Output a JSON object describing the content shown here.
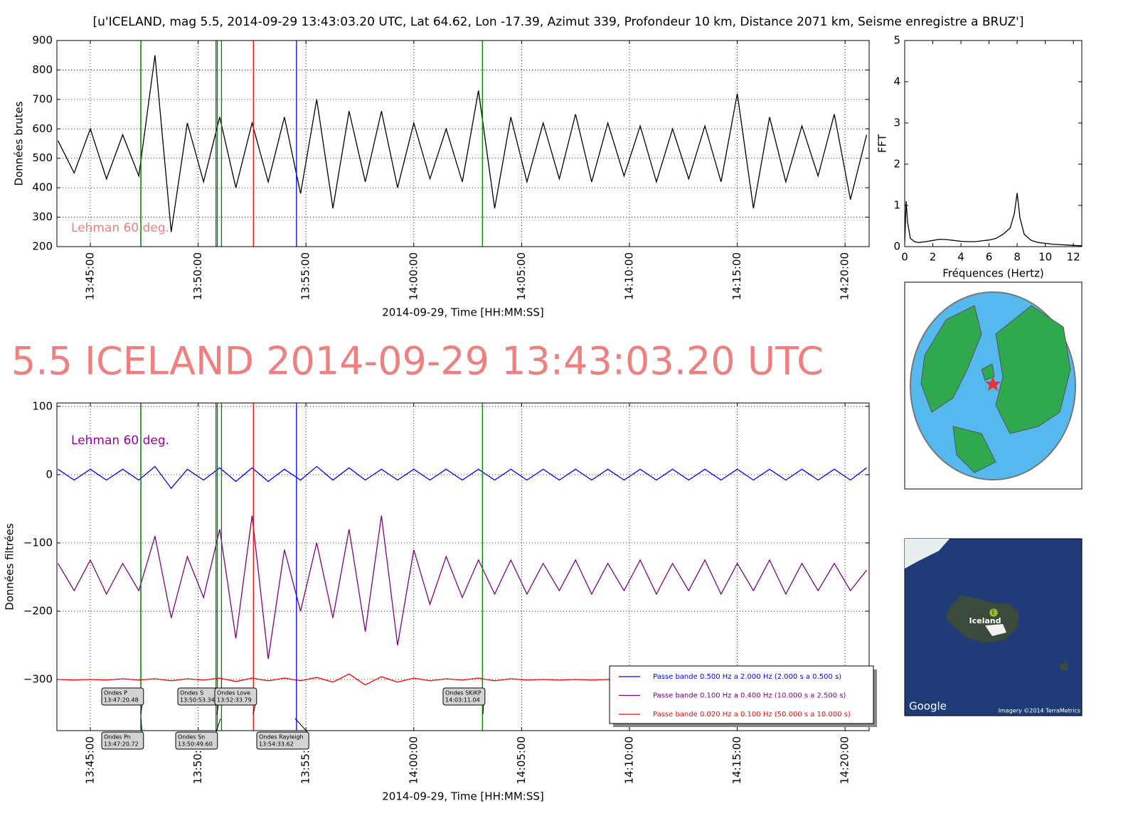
{
  "chart_data": [
    {
      "type": "line",
      "title": "[u'ICELAND, mag 5.5, 2014-09-29 13:43:03.20 UTC, Lat 64.62, Lon -17.39, Azimut 339, Profondeur 10 km, Distance  2071 km, Seisme enregistre a BRUZ']",
      "ylabel": "Données brutes",
      "xlabel": "2014-09-29, Time [HH:MM:SS]",
      "annotation": "Lehman 60 deg.",
      "annotation_color": "#f08080",
      "color": "#000000",
      "grid": true,
      "xlim": [
        "13:43:27",
        "14:21:07"
      ],
      "xticks": [
        "13:45:00",
        "13:50:00",
        "13:55:00",
        "14:00:00",
        "14:05:00",
        "14:10:00",
        "14:15:00",
        "14:20:00"
      ],
      "ylim": [
        200,
        900
      ],
      "yticks": [
        200,
        300,
        400,
        500,
        600,
        700,
        800,
        900
      ],
      "x": [
        "13:43:30",
        "13:44:15",
        "13:45:00",
        "13:45:45",
        "13:46:30",
        "13:47:15",
        "13:48:00",
        "13:48:45",
        "13:49:30",
        "13:50:15",
        "13:51:00",
        "13:51:45",
        "13:52:30",
        "13:53:15",
        "13:54:00",
        "13:54:45",
        "13:55:30",
        "13:56:15",
        "13:57:00",
        "13:57:45",
        "13:58:30",
        "13:59:15",
        "14:00:00",
        "14:00:45",
        "14:01:30",
        "14:02:15",
        "14:03:00",
        "14:03:45",
        "14:04:30",
        "14:05:15",
        "14:06:00",
        "14:06:45",
        "14:07:30",
        "14:08:15",
        "14:09:00",
        "14:09:45",
        "14:10:30",
        "14:11:15",
        "14:12:00",
        "14:12:45",
        "14:13:30",
        "14:14:15",
        "14:15:00",
        "14:15:45",
        "14:16:30",
        "14:17:15",
        "14:18:00",
        "14:18:45",
        "14:19:30",
        "14:20:15",
        "14:21:00"
      ],
      "values": [
        560,
        450,
        600,
        430,
        580,
        440,
        850,
        250,
        620,
        420,
        640,
        400,
        620,
        420,
        640,
        380,
        700,
        330,
        660,
        420,
        660,
        400,
        620,
        430,
        600,
        420,
        730,
        330,
        640,
        420,
        620,
        430,
        650,
        420,
        620,
        440,
        610,
        420,
        600,
        430,
        610,
        420,
        720,
        330,
        640,
        420,
        610,
        440,
        650,
        360,
        580
      ]
    },
    {
      "type": "line",
      "ylabel": "FFT",
      "xlabel": "Fréquences (Hertz)",
      "color": "#000000",
      "grid": false,
      "xlim": [
        0,
        12.6
      ],
      "xticks": [
        0,
        2,
        4,
        6,
        8,
        10,
        12
      ],
      "ylim": [
        0,
        5
      ],
      "yticks": [
        0,
        1,
        2,
        3,
        4,
        5
      ],
      "x": [
        0,
        0.1,
        0.2,
        0.4,
        0.7,
        1,
        1.5,
        2,
        2.5,
        3,
        3.5,
        4,
        4.5,
        5,
        5.5,
        6,
        6.5,
        7,
        7.5,
        7.8,
        8,
        8.2,
        8.5,
        9,
        9.5,
        10,
        10.5,
        11,
        11.5,
        12,
        12.6
      ],
      "values": [
        0.1,
        1.1,
        0.6,
        0.2,
        0.12,
        0.1,
        0.12,
        0.15,
        0.18,
        0.17,
        0.15,
        0.13,
        0.12,
        0.12,
        0.14,
        0.16,
        0.2,
        0.3,
        0.45,
        0.8,
        1.3,
        0.7,
        0.3,
        0.15,
        0.1,
        0.08,
        0.06,
        0.05,
        0.04,
        0.03,
        0.02
      ]
    },
    {
      "type": "line",
      "title": "5.5 ICELAND 2014-09-29 13:43:03.20 UTC",
      "ylabel": "Données filtrées",
      "xlabel": "2014-09-29, Time [HH:MM:SS]",
      "annotation": "Lehman 60 deg.",
      "annotation_color": "#990099",
      "grid": true,
      "legend": "lower right",
      "xlim": [
        "13:43:27",
        "14:21:07"
      ],
      "xticks": [
        "13:45:00",
        "13:50:00",
        "13:55:00",
        "14:00:00",
        "14:05:00",
        "14:10:00",
        "14:15:00",
        "14:20:00"
      ],
      "ylim": [
        -375,
        105
      ],
      "yticks": [
        {
          "value": -300,
          "label": "−300"
        },
        {
          "value": -200,
          "label": "−200"
        },
        {
          "value": -100,
          "label": "−100"
        },
        0,
        100
      ],
      "phases": [
        {
          "name": "Ondes P",
          "time": "13:47:20.48",
          "color": "#008000"
        },
        {
          "name": "Ondes Pn",
          "time": "13:47:20.72",
          "color": "#008000"
        },
        {
          "name": "Ondes S",
          "time": "13:50:53.34",
          "color": "#008000"
        },
        {
          "name": "Ondes Sn",
          "time": "13:50:49.60",
          "color": "#008000"
        },
        {
          "time": "13:51:05",
          "color": "#008000"
        },
        {
          "name": "Ondes Love",
          "time": "13:52:33.79",
          "color": "#ff0000"
        },
        {
          "name": "Ondes Rayleigh",
          "time": "13:54:33.62",
          "color": "#0000ff"
        },
        {
          "name": "Ondes SKiKP",
          "time": "14:03:11.04",
          "color": "#008000"
        }
      ],
      "x": [
        "13:43:30",
        "13:44:15",
        "13:45:00",
        "13:45:45",
        "13:46:30",
        "13:47:15",
        "13:48:00",
        "13:48:45",
        "13:49:30",
        "13:50:15",
        "13:51:00",
        "13:51:45",
        "13:52:30",
        "13:53:15",
        "13:54:00",
        "13:54:45",
        "13:55:30",
        "13:56:15",
        "13:57:00",
        "13:57:45",
        "13:58:30",
        "13:59:15",
        "14:00:00",
        "14:00:45",
        "14:01:30",
        "14:02:15",
        "14:03:00",
        "14:03:45",
        "14:04:30",
        "14:05:15",
        "14:06:00",
        "14:06:45",
        "14:07:30",
        "14:08:15",
        "14:09:00",
        "14:09:45",
        "14:10:30",
        "14:11:15",
        "14:12:00",
        "14:12:45",
        "14:13:30",
        "14:14:15",
        "14:15:00",
        "14:15:45",
        "14:16:30",
        "14:17:15",
        "14:18:00",
        "14:18:45",
        "14:19:30",
        "14:20:15",
        "14:21:00"
      ],
      "series": [
        {
          "name": "Passe bande 0.500 Hz a 2.000 Hz (2.000 s a 0.500 s)",
          "color": "#0000ff",
          "values": [
            8,
            -8,
            8,
            -8,
            8,
            -8,
            12,
            -20,
            8,
            -8,
            10,
            -10,
            10,
            -10,
            8,
            -8,
            12,
            -8,
            10,
            -8,
            8,
            -8,
            8,
            -8,
            8,
            -8,
            8,
            -8,
            8,
            -8,
            8,
            -8,
            8,
            -8,
            8,
            -8,
            8,
            -8,
            8,
            -8,
            8,
            -8,
            8,
            -8,
            8,
            -8,
            8,
            -8,
            8,
            -8,
            10
          ]
        },
        {
          "name": "Passe bande 0.100 Hz a 0.400 Hz (10.000 s a 2.500 s)",
          "color": "#800080",
          "values": [
            -130,
            -170,
            -125,
            -175,
            -130,
            -170,
            -90,
            -210,
            -120,
            -180,
            -80,
            -240,
            -60,
            -270,
            -110,
            -200,
            -100,
            -210,
            -80,
            -230,
            -60,
            -250,
            -110,
            -190,
            -120,
            -180,
            -125,
            -175,
            -125,
            -175,
            -130,
            -170,
            -125,
            -175,
            -130,
            -170,
            -125,
            -175,
            -130,
            -170,
            -125,
            -175,
            -130,
            -170,
            -125,
            -175,
            -130,
            -170,
            -130,
            -170,
            -140
          ]
        },
        {
          "name": "Passe bande 0.020 Hz a 0.100 Hz (50.000 s a 10.000 s)",
          "color": "#ff0000",
          "values": [
            -300,
            -301,
            -300,
            -301,
            -299,
            -301,
            -299,
            -302,
            -299,
            -301,
            -298,
            -303,
            -298,
            -302,
            -298,
            -302,
            -297,
            -304,
            -292,
            -308,
            -296,
            -304,
            -298,
            -302,
            -299,
            -301,
            -298,
            -302,
            -299,
            -301,
            -300,
            -301,
            -300,
            -301,
            -300,
            -301,
            -300,
            -301,
            -300,
            -301,
            -300,
            -301,
            -300,
            -301,
            -300,
            -301,
            -300,
            -301,
            -300,
            -301,
            -300
          ]
        }
      ]
    }
  ],
  "maps": {
    "label": "Iceland",
    "marker": "E",
    "brand": "Google",
    "credit": "Imagery ©2014 TerraMetrics"
  }
}
